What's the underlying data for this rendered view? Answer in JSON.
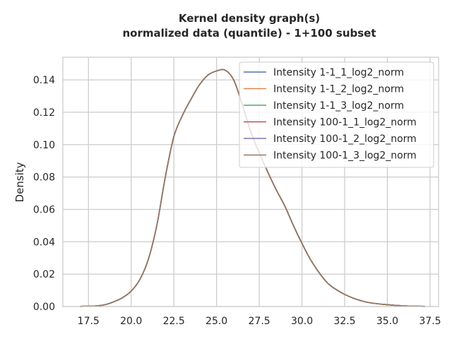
{
  "chart_data": {
    "type": "line",
    "title": "Kernel density graph(s)",
    "subtitle": "normalized data (quantile) - 1+100 subset",
    "xlabel": "",
    "ylabel": "Density",
    "xlim": [
      16.0,
      38.0
    ],
    "ylim": [
      0.0,
      0.154
    ],
    "xticks": [
      17.5,
      20.0,
      22.5,
      25.0,
      27.5,
      30.0,
      32.5,
      35.0,
      37.5
    ],
    "xtick_labels": [
      "17.5",
      "20.0",
      "22.5",
      "25.0",
      "27.5",
      "30.0",
      "32.5",
      "35.0",
      "37.5"
    ],
    "yticks": [
      0.0,
      0.02,
      0.04,
      0.06,
      0.08,
      0.1,
      0.12,
      0.14
    ],
    "ytick_labels": [
      "0.00",
      "0.02",
      "0.04",
      "0.06",
      "0.08",
      "0.10",
      "0.12",
      "0.14"
    ],
    "grid": true,
    "legend_position": "top-right",
    "x": [
      17.0,
      18.0,
      18.5,
      19.0,
      19.5,
      20.0,
      20.5,
      21.0,
      21.5,
      22.0,
      22.5,
      23.0,
      23.5,
      24.0,
      24.5,
      25.0,
      25.5,
      26.0,
      26.5,
      27.0,
      27.5,
      28.0,
      28.5,
      29.0,
      29.5,
      30.0,
      30.5,
      31.0,
      31.5,
      32.0,
      32.5,
      33.0,
      33.5,
      34.0,
      35.0,
      36.0,
      37.2
    ],
    "series": [
      {
        "name": "Intensity 1-1_1_log2_norm",
        "color": "#4c72b0",
        "values": [
          0.0001,
          0.0004,
          0.0012,
          0.003,
          0.0055,
          0.0095,
          0.0165,
          0.029,
          0.05,
          0.08,
          0.105,
          0.118,
          0.128,
          0.137,
          0.143,
          0.1455,
          0.146,
          0.14,
          0.125,
          0.108,
          0.095,
          0.083,
          0.072,
          0.062,
          0.05,
          0.039,
          0.029,
          0.021,
          0.0145,
          0.0105,
          0.0075,
          0.0052,
          0.0035,
          0.0023,
          0.0011,
          0.0004,
          0.0001
        ]
      },
      {
        "name": "Intensity 1-1_2_log2_norm",
        "color": "#dd8452",
        "values": [
          0.0001,
          0.0004,
          0.0012,
          0.003,
          0.0055,
          0.0095,
          0.0165,
          0.029,
          0.05,
          0.08,
          0.105,
          0.118,
          0.128,
          0.137,
          0.143,
          0.1455,
          0.146,
          0.14,
          0.125,
          0.108,
          0.095,
          0.083,
          0.072,
          0.062,
          0.05,
          0.039,
          0.029,
          0.021,
          0.0145,
          0.0105,
          0.0075,
          0.0052,
          0.0035,
          0.0023,
          0.0011,
          0.0004,
          0.0001
        ]
      },
      {
        "name": "Intensity 1-1_3_log2_norm",
        "color": "#55a868",
        "values": [
          0.0001,
          0.0004,
          0.0012,
          0.003,
          0.0055,
          0.0095,
          0.0165,
          0.029,
          0.05,
          0.08,
          0.105,
          0.118,
          0.128,
          0.137,
          0.143,
          0.1455,
          0.146,
          0.14,
          0.125,
          0.108,
          0.095,
          0.083,
          0.072,
          0.062,
          0.05,
          0.039,
          0.029,
          0.021,
          0.0145,
          0.0105,
          0.0075,
          0.0052,
          0.0035,
          0.0023,
          0.0011,
          0.0004,
          0.0001
        ]
      },
      {
        "name": "Intensity 100-1_1_log2_norm",
        "color": "#c44e52",
        "values": [
          0.0001,
          0.0004,
          0.0012,
          0.003,
          0.0055,
          0.0095,
          0.0165,
          0.029,
          0.05,
          0.08,
          0.105,
          0.118,
          0.128,
          0.137,
          0.143,
          0.1455,
          0.146,
          0.14,
          0.125,
          0.108,
          0.095,
          0.083,
          0.072,
          0.062,
          0.05,
          0.039,
          0.029,
          0.021,
          0.0145,
          0.0105,
          0.0075,
          0.0052,
          0.0035,
          0.0023,
          0.0011,
          0.0004,
          0.0001
        ]
      },
      {
        "name": "Intensity 100-1_2_log2_norm",
        "color": "#8172b3",
        "values": [
          0.0001,
          0.0004,
          0.0012,
          0.003,
          0.0055,
          0.0095,
          0.0165,
          0.029,
          0.05,
          0.08,
          0.105,
          0.118,
          0.128,
          0.137,
          0.143,
          0.1455,
          0.146,
          0.14,
          0.125,
          0.108,
          0.095,
          0.083,
          0.072,
          0.062,
          0.05,
          0.039,
          0.029,
          0.021,
          0.0145,
          0.0105,
          0.0075,
          0.0052,
          0.0035,
          0.0023,
          0.0011,
          0.0004,
          0.0001
        ]
      },
      {
        "name": "Intensity 100-1_3_log2_norm",
        "color": "#937860",
        "values": [
          0.0001,
          0.0004,
          0.0012,
          0.003,
          0.0055,
          0.0095,
          0.0165,
          0.029,
          0.05,
          0.08,
          0.105,
          0.118,
          0.128,
          0.137,
          0.143,
          0.1455,
          0.146,
          0.14,
          0.125,
          0.108,
          0.095,
          0.083,
          0.072,
          0.062,
          0.05,
          0.039,
          0.029,
          0.021,
          0.0145,
          0.0105,
          0.0075,
          0.0052,
          0.0035,
          0.0023,
          0.0011,
          0.0004,
          0.0001
        ]
      }
    ]
  }
}
